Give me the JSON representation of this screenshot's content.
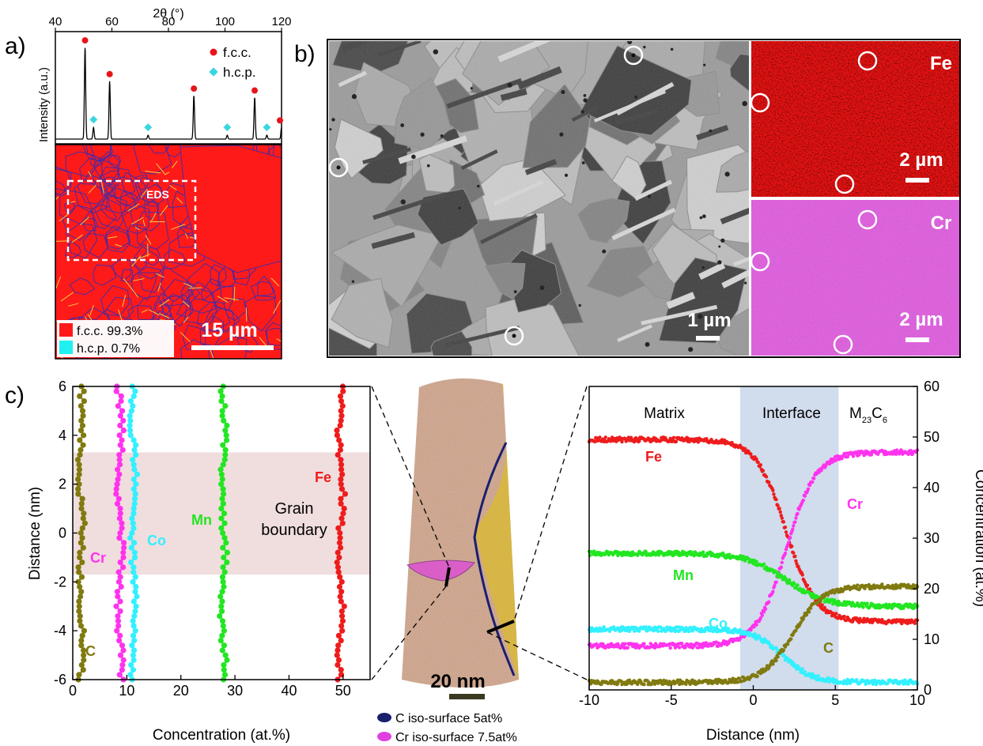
{
  "panel_labels": {
    "a": "a)",
    "b": "b)",
    "c": "c)"
  },
  "panel_a": {
    "xrd": {
      "xlabel": "2θ (°)",
      "ylabel": "Intensity (a.u.)",
      "ticks": [
        "40",
        "60",
        "80",
        "100",
        "120"
      ],
      "legend": [
        {
          "label": "f.c.c.",
          "marker": "circle",
          "color": "#e8141b"
        },
        {
          "label": "h.c.p.",
          "marker": "diamond",
          "color": "#3ad6e0"
        }
      ],
      "xrange": [
        40,
        120
      ],
      "fcc_peaks": [
        50.5,
        59.2,
        89.0,
        110.5,
        120
      ],
      "fcc_heights": [
        0.95,
        0.6,
        0.45,
        0.43,
        0.12
      ],
      "hcp_peaks": [
        53.5,
        72.8,
        100.8,
        114.8
      ],
      "hcp_heights": [
        0.12,
        0.04,
        0.04,
        0.04
      ]
    },
    "map": {
      "eds_label": "EDS",
      "phase_legend": [
        {
          "label": "f.c.c. 99.3%",
          "color": "#ff1a1a"
        },
        {
          "label": "h.c.p. 0.7%",
          "color": "#20f0f0"
        }
      ],
      "scalebar": "15 µm"
    }
  },
  "panel_b": {
    "sem_scalebar": "1 µm",
    "fe": {
      "label": "Fe",
      "scalebar": "2 µm",
      "color": "#e51212"
    },
    "cr": {
      "label": "Cr",
      "scalebar": "2 µm",
      "color": "#c41cc4"
    }
  },
  "panel_c_left": {
    "xlabel": "Concentration (at.%)",
    "ylabel": "Distance (nm)",
    "xticks": [
      "0",
      "10",
      "20",
      "30",
      "40",
      "50"
    ],
    "yticks": [
      "6",
      "4",
      "2",
      "0",
      "-2",
      "-4",
      "-6"
    ],
    "xlim": [
      0,
      55
    ],
    "ylim": [
      -6,
      6
    ],
    "gb_label_1": "Grain",
    "gb_label_2": "boundary",
    "gb_range": [
      -1.7,
      3.3
    ],
    "series": [
      {
        "name": "C",
        "color": "#807a10",
        "mean": 1.5
      },
      {
        "name": "Cr",
        "color": "#ff33ee",
        "mean": 8.7
      },
      {
        "name": "Co",
        "color": "#33f0ff",
        "mean": 11.3
      },
      {
        "name": "Mn",
        "color": "#22e622",
        "mean": 27.8
      },
      {
        "name": "Fe",
        "color": "#ee1c1c",
        "mean": 49.6
      }
    ]
  },
  "panel_c_mid": {
    "scalebar": "20 nm",
    "legend": [
      {
        "label": "C iso-surface 5at%",
        "color": "#1a1f6e"
      },
      {
        "label": "Cr iso-surface 7.5at%",
        "color": "#e040e0"
      }
    ]
  },
  "panel_c_right": {
    "xlabel": "Distance (nm)",
    "ylabel": "Concentration (at.%)",
    "xticks": [
      "-10",
      "-5",
      "0",
      "5",
      "10"
    ],
    "yticks": [
      "0",
      "10",
      "20",
      "30",
      "40",
      "50",
      "60"
    ],
    "xlim": [
      -10,
      10
    ],
    "ylim": [
      0,
      60
    ],
    "regions": {
      "matrix": "Matrix",
      "interface": "Interface",
      "carbide": "M",
      "carbide_sub1": "23",
      "carbide_c": "C",
      "carbide_sub2": "6"
    },
    "interface_range": [
      -0.8,
      5.2
    ],
    "series": [
      {
        "name": "Fe",
        "color": "#ee1c1c",
        "left": 49.5,
        "right": 13.5,
        "center": 2.0,
        "width": 0.9
      },
      {
        "name": "Cr",
        "color": "#ff33ee",
        "left": 8.7,
        "right": 47.0,
        "center": 2.0,
        "width": 0.9
      },
      {
        "name": "Mn",
        "color": "#22e622",
        "left": 27.0,
        "right": 16.5,
        "center": 2.0,
        "width": 1.2
      },
      {
        "name": "Co",
        "color": "#33f0ff",
        "left": 12.0,
        "right": 1.5,
        "center": 1.8,
        "width": 0.9
      },
      {
        "name": "C",
        "color": "#807a10",
        "left": 1.5,
        "right": 20.5,
        "center": 2.4,
        "width": 0.9
      }
    ]
  }
}
